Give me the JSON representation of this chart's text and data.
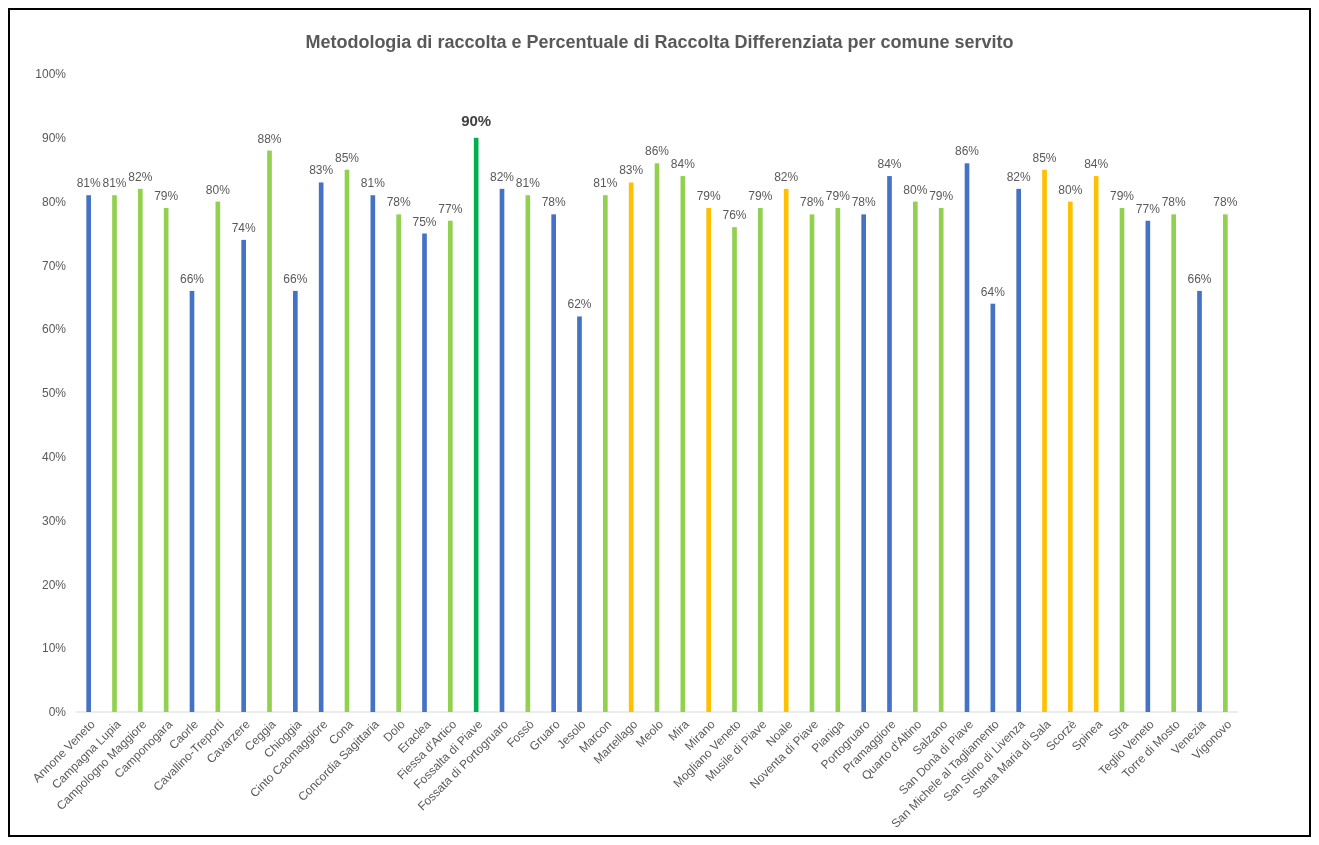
{
  "chart_data": {
    "type": "bar",
    "title": "Metodologia di raccolta e Percentuale di Raccolta Differenziata per comune servito",
    "categories": [
      "Annone Veneto",
      "Campagna Lupia",
      "Campologno Maggiore",
      "Camponogara",
      "Caorle",
      "Cavallino-Treporti",
      "Cavarzere",
      "Ceggia",
      "Chioggia",
      "Cinto Caomaggiore",
      "Cona",
      "Concordia Sagittaria",
      "Dolo",
      "Eraclea",
      "Fiessa d'Artico",
      "Fossalta di Piave",
      "Fossata di Portogruaro",
      "Fossò",
      "Gruaro",
      "Jesolo",
      "Marcon",
      "Martellago",
      "Meolo",
      "Mira",
      "Mirano",
      "Mogliano Veneto",
      "Musile di Piave",
      "Noale",
      "Noventa di Piave",
      "Pianiga",
      "Portogruaro",
      "Pramaggiore",
      "Quarto d'Altino",
      "Salzano",
      "San Donà di Piave",
      "San Michele al Tagliamento",
      "San Stino di Livenza",
      "Santa Maria di Sala",
      "Scorzè",
      "Spinea",
      "Stra",
      "Teglio Veneto",
      "Torre di Mosto",
      "Venezia",
      "Vigonovo"
    ],
    "values": [
      81,
      81,
      82,
      79,
      66,
      80,
      74,
      88,
      66,
      83,
      85,
      81,
      78,
      75,
      77,
      90,
      82,
      81,
      78,
      62,
      81,
      83,
      86,
      84,
      79,
      76,
      79,
      82,
      78,
      79,
      78,
      84,
      80,
      79,
      86,
      64,
      82,
      85,
      80,
      84,
      79,
      77,
      78,
      66,
      78
    ],
    "value_labels": [
      "81%",
      "81%",
      "82%",
      "79%",
      "66%",
      "80%",
      "74%",
      "88%",
      "66%",
      "83%",
      "85%",
      "81%",
      "78%",
      "75%",
      "77%",
      "90%",
      "82%",
      "81%",
      "78%",
      "62%",
      "81%",
      "83%",
      "86%",
      "84%",
      "79%",
      "76%",
      "79%",
      "82%",
      "78%",
      "79%",
      "78%",
      "84%",
      "80%",
      "79%",
      "86%",
      "64%",
      "82%",
      "85%",
      "80%",
      "84%",
      "79%",
      "77%",
      "78%",
      "66%",
      "78%"
    ],
    "colors": [
      "#4472c4",
      "#92d050",
      "#92d050",
      "#92d050",
      "#4472c4",
      "#92d050",
      "#4472c4",
      "#92d050",
      "#4472c4",
      "#4472c4",
      "#92d050",
      "#4472c4",
      "#92d050",
      "#4472c4",
      "#92d050",
      "#00b050",
      "#4472c4",
      "#92d050",
      "#4472c4",
      "#4472c4",
      "#92d050",
      "#ffc000",
      "#92d050",
      "#92d050",
      "#ffc000",
      "#92d050",
      "#92d050",
      "#ffc000",
      "#92d050",
      "#92d050",
      "#4472c4",
      "#4472c4",
      "#92d050",
      "#92d050",
      "#4472c4",
      "#4472c4",
      "#4472c4",
      "#ffc000",
      "#ffc000",
      "#ffc000",
      "#92d050",
      "#4472c4",
      "#92d050",
      "#4472c4",
      "#92d050"
    ],
    "ylim": [
      0,
      100
    ],
    "yticks": [
      {
        "value": 0,
        "label": "0%"
      },
      {
        "value": 10,
        "label": "10%"
      },
      {
        "value": 20,
        "label": "20%"
      },
      {
        "value": 30,
        "label": "30%"
      },
      {
        "value": 40,
        "label": "40%"
      },
      {
        "value": 50,
        "label": "50%"
      },
      {
        "value": 60,
        "label": "60%"
      },
      {
        "value": 70,
        "label": "70%"
      },
      {
        "value": 80,
        "label": "80%"
      },
      {
        "value": 90,
        "label": "90%"
      },
      {
        "value": 100,
        "label": "100%"
      }
    ],
    "grid": false
  }
}
